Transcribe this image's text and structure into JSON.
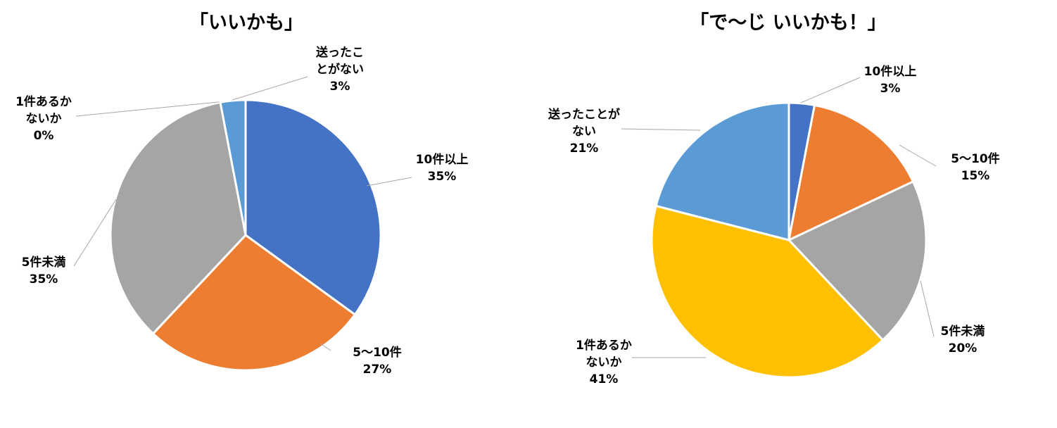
{
  "chart_data": [
    {
      "type": "pie",
      "title": "「いいかも」",
      "slices": [
        {
          "label": "10件以上",
          "value": 35,
          "pct_label": "35%",
          "color": "#4472c4"
        },
        {
          "label": "5～10件",
          "value": 27,
          "pct_label": "27%",
          "color": "#ed7d31"
        },
        {
          "label": "5件未満",
          "value": 35,
          "pct_label": "35%",
          "color": "#a5a5a5"
        },
        {
          "label": "1件あるかないか",
          "value": 0,
          "pct_label": "0%",
          "color": "#ffc000"
        },
        {
          "label": "送ったことがない",
          "value": 3,
          "pct_label": "3%",
          "color": "#5b9bd5"
        }
      ]
    },
    {
      "type": "pie",
      "title": "「で～じ いいかも！」",
      "slices": [
        {
          "label": "10件以上",
          "value": 3,
          "pct_label": "3%",
          "color": "#4472c4"
        },
        {
          "label": "5～10件",
          "value": 15,
          "pct_label": "15%",
          "color": "#ed7d31"
        },
        {
          "label": "5件未満",
          "value": 20,
          "pct_label": "20%",
          "color": "#a5a5a5"
        },
        {
          "label": "1件あるかないか",
          "value": 41,
          "pct_label": "41%",
          "color": "#ffc000"
        },
        {
          "label": "送ったことがない",
          "value": 21,
          "pct_label": "21%",
          "color": "#5b9bd5"
        }
      ]
    }
  ]
}
